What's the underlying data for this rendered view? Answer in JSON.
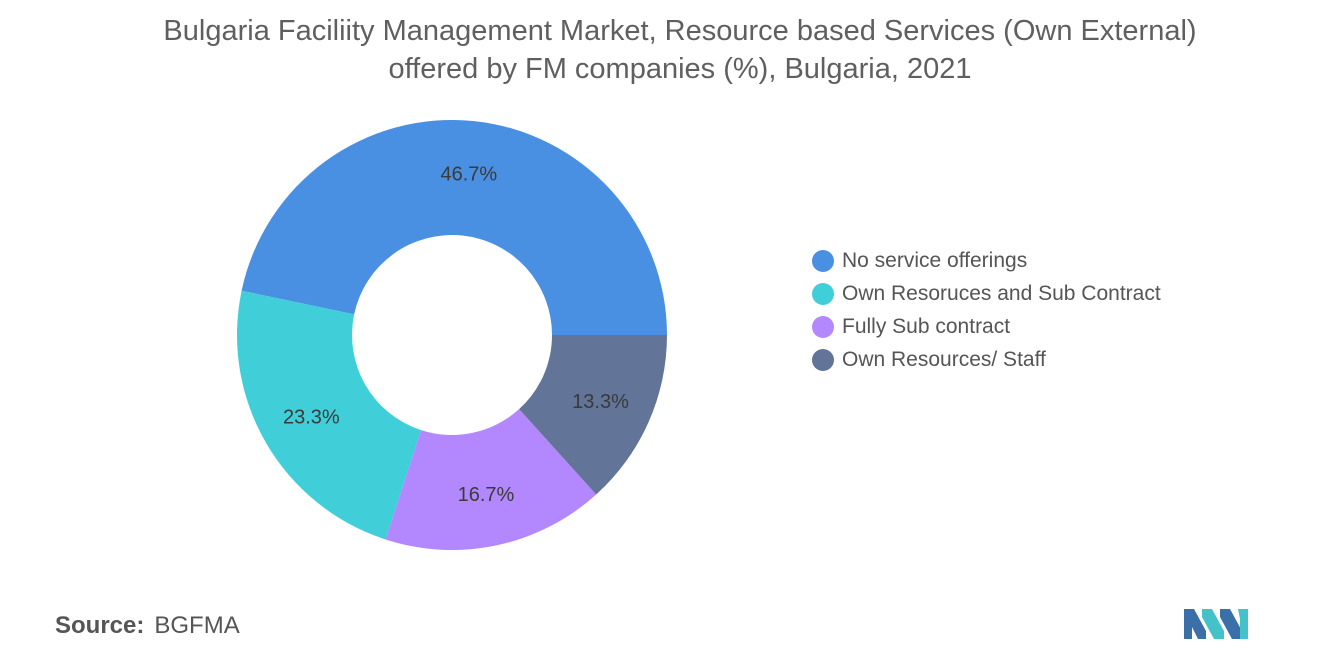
{
  "chart_data": {
    "type": "pie",
    "donut": true,
    "title": "Bulgaria Faciliity Management Market, Resource based Services (Own External) offered by FM companies (%), Bulgaria, 2021",
    "categories": [
      "No service offerings",
      "Own Resoruces and Sub Contract",
      "Fully Sub contract",
      "Own Resources/ Staff"
    ],
    "values": [
      46.7,
      23.3,
      16.7,
      13.3
    ],
    "data_labels": [
      "46.7%",
      "23.3%",
      "16.7%",
      "13.3%"
    ],
    "colors": [
      "#4a90e2",
      "#40cfd9",
      "#b388ff",
      "#627497"
    ],
    "legend_position": "right"
  },
  "source": {
    "label": "Source:",
    "value": "BGFMA"
  },
  "logo": {
    "icon": "mordor-intelligence-logo-icon",
    "colors": [
      "#3b6fa8",
      "#45c1c9"
    ]
  }
}
